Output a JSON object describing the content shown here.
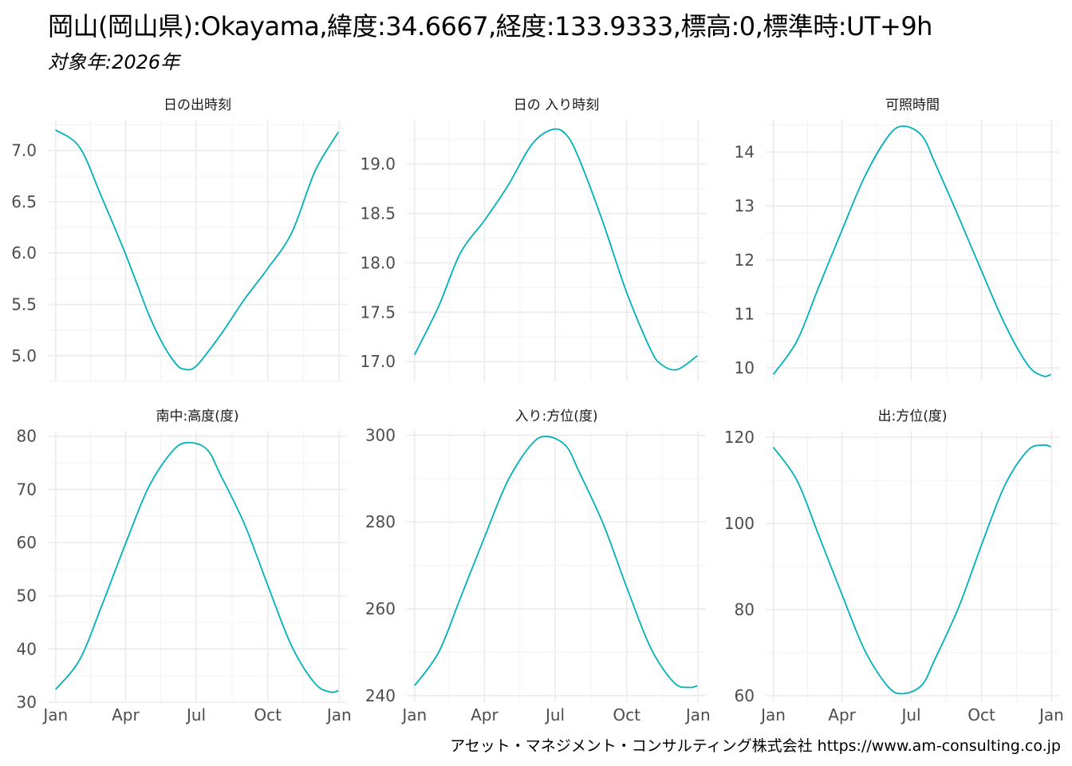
{
  "title": "岡山(岡山県):Okayama,緯度:34.6667,経度:133.9333,標高:0,標準時:UT+9h",
  "subtitle": "対象年:2026年",
  "caption": "アセット・マネジメント・コンサルティング株式会社 https://www.am-consulting.co.jp",
  "colors": {
    "line": "#00b2b8",
    "grid_major": "#ebebeb",
    "grid_minor": "#f3f3f3"
  },
  "chart_data": [
    {
      "type": "line",
      "title": "日の出時刻",
      "x": [
        "2026-01-01",
        "2026-02-01",
        "2026-03-01",
        "2026-04-01",
        "2026-05-01",
        "2026-05-20",
        "2026-06-05",
        "2026-06-15",
        "2026-07-01",
        "2026-08-01",
        "2026-09-01",
        "2026-10-01",
        "2026-11-01",
        "2026-12-01",
        "2026-12-31"
      ],
      "values": [
        7.2,
        7.03,
        6.55,
        5.99,
        5.4,
        5.1,
        4.92,
        4.87,
        4.9,
        5.2,
        5.55,
        5.85,
        6.2,
        6.8,
        7.18
      ],
      "ylim": [
        4.75,
        7.3
      ],
      "yticks": [
        "5.0",
        "5.5",
        "6.0",
        "6.5",
        "7.0"
      ]
    },
    {
      "type": "line",
      "title": "日の 入り時刻",
      "x": [
        "2026-01-01",
        "2026-02-01",
        "2026-03-01",
        "2026-04-01",
        "2026-05-01",
        "2026-06-01",
        "2026-06-27",
        "2026-07-15",
        "2026-08-01",
        "2026-09-01",
        "2026-10-01",
        "2026-11-01",
        "2026-11-15",
        "2026-12-05",
        "2026-12-31"
      ],
      "values": [
        17.07,
        17.56,
        18.1,
        18.43,
        18.78,
        19.2,
        19.35,
        19.3,
        19.05,
        18.4,
        17.7,
        17.12,
        16.97,
        16.92,
        17.06
      ],
      "ylim": [
        16.8,
        19.45
      ],
      "yticks": [
        "17.0",
        "17.5",
        "18.0",
        "18.5",
        "19.0"
      ]
    },
    {
      "type": "line",
      "title": "可照時間",
      "x": [
        "2026-01-01",
        "2026-02-01",
        "2026-03-01",
        "2026-04-01",
        "2026-05-01",
        "2026-06-01",
        "2026-06-21",
        "2026-07-15",
        "2026-08-01",
        "2026-09-01",
        "2026-10-01",
        "2026-11-01",
        "2026-12-01",
        "2026-12-21",
        "2026-12-31"
      ],
      "values": [
        9.88,
        10.5,
        11.48,
        12.55,
        13.55,
        14.3,
        14.48,
        14.3,
        13.8,
        12.8,
        11.8,
        10.8,
        10.05,
        9.85,
        9.88
      ],
      "ylim": [
        9.75,
        14.6
      ],
      "yticks": [
        "10",
        "11",
        "12",
        "13",
        "14"
      ]
    },
    {
      "type": "line",
      "title": "南中:高度(度)",
      "x": [
        "2026-01-01",
        "2026-02-01",
        "2026-03-01",
        "2026-04-01",
        "2026-05-01",
        "2026-06-01",
        "2026-06-21",
        "2026-07-15",
        "2026-08-01",
        "2026-09-01",
        "2026-10-01",
        "2026-11-01",
        "2026-12-01",
        "2026-12-21",
        "2026-12-31"
      ],
      "values": [
        32.4,
        38.0,
        48.0,
        59.8,
        70.5,
        77.3,
        78.8,
        77.5,
        72.8,
        63.5,
        52.0,
        40.5,
        33.5,
        31.9,
        32.2
      ],
      "ylim": [
        30,
        81
      ],
      "yticks": [
        "30",
        "40",
        "50",
        "60",
        "70",
        "80"
      ]
    },
    {
      "type": "line",
      "title": "入り:方位(度)",
      "x": [
        "2026-01-01",
        "2026-02-01",
        "2026-03-01",
        "2026-04-01",
        "2026-05-01",
        "2026-06-01",
        "2026-06-21",
        "2026-07-15",
        "2026-08-01",
        "2026-09-01",
        "2026-10-01",
        "2026-11-01",
        "2026-12-01",
        "2026-12-21",
        "2026-12-31"
      ],
      "values": [
        242.3,
        250.0,
        262.5,
        276.5,
        289.5,
        298.0,
        299.7,
        297.5,
        291.5,
        279.5,
        265.0,
        251.0,
        243.0,
        241.9,
        242.3
      ],
      "ylim": [
        238.5,
        301
      ],
      "yticks": [
        "240",
        "260",
        "280",
        "300"
      ]
    },
    {
      "type": "line",
      "title": "出:方位(度)",
      "x": [
        "2026-01-01",
        "2026-02-01",
        "2026-03-01",
        "2026-04-01",
        "2026-05-01",
        "2026-06-01",
        "2026-06-21",
        "2026-07-15",
        "2026-08-01",
        "2026-09-01",
        "2026-10-01",
        "2026-11-01",
        "2026-12-01",
        "2026-12-21",
        "2026-12-31"
      ],
      "values": [
        117.7,
        110.0,
        97.5,
        83.5,
        70.5,
        62.0,
        60.5,
        62.5,
        68.5,
        80.5,
        95.0,
        109.0,
        117.0,
        118.2,
        117.8
      ],
      "ylim": [
        58.5,
        121.5
      ],
      "yticks": [
        "60",
        "80",
        "100",
        "120"
      ]
    }
  ],
  "xticks": [
    "Jan",
    "Apr",
    "Jul",
    "Oct",
    "Jan"
  ]
}
